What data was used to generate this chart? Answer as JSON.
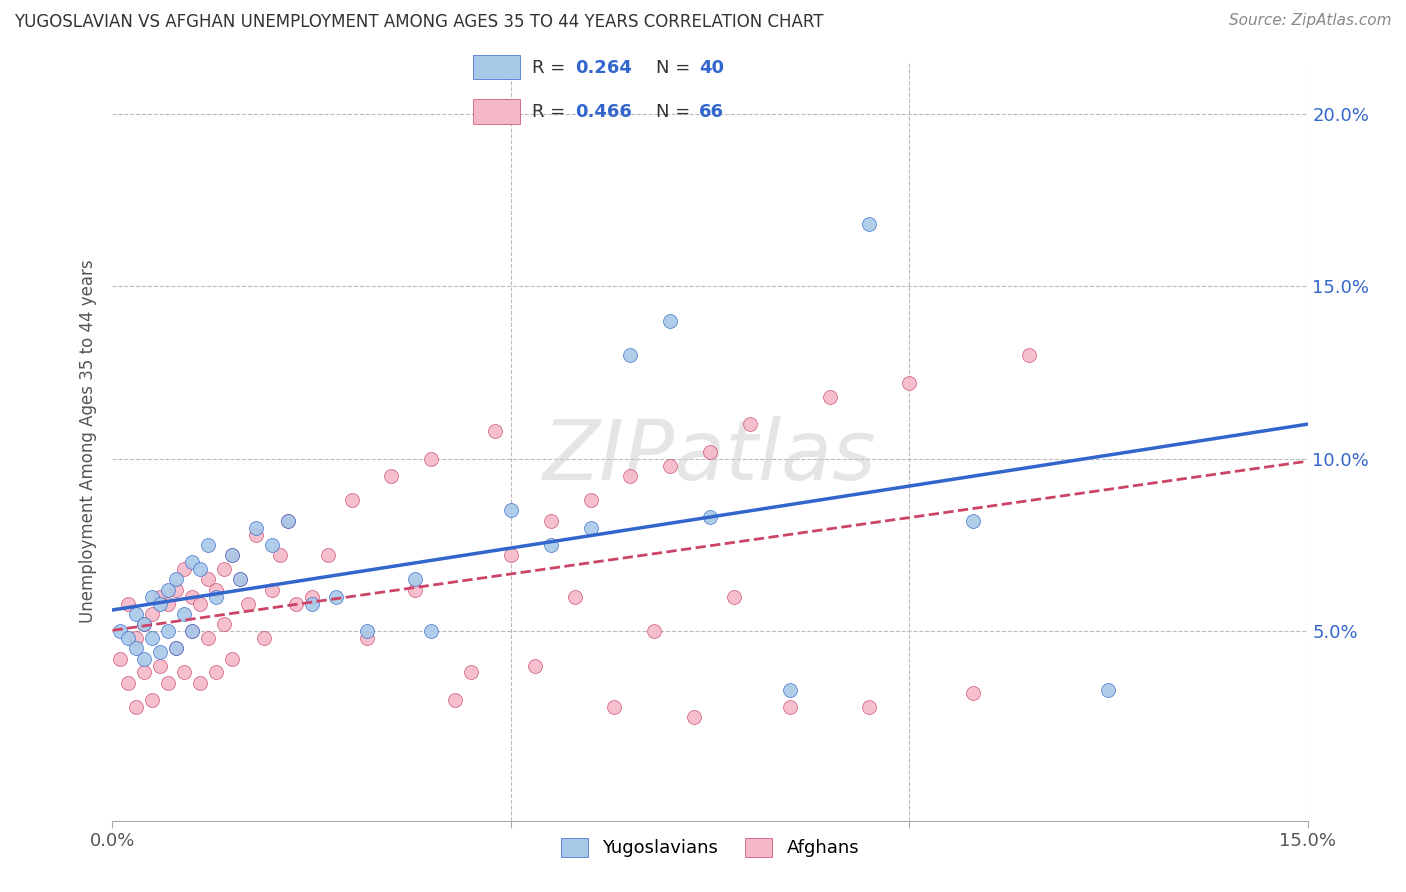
{
  "title": "YUGOSLAVIAN VS AFGHAN UNEMPLOYMENT AMONG AGES 35 TO 44 YEARS CORRELATION CHART",
  "source": "Source: ZipAtlas.com",
  "ylabel": "Unemployment Among Ages 35 to 44 years",
  "xlim": [
    0.0,
    0.15
  ],
  "ylim": [
    -0.005,
    0.215
  ],
  "xticks": [
    0.0,
    0.05,
    0.1,
    0.15
  ],
  "xticklabels": [
    "0.0%",
    "",
    "",
    "15.0%"
  ],
  "ytick_right": [
    0.05,
    0.1,
    0.15,
    0.2
  ],
  "yticklabels_right": [
    "5.0%",
    "10.0%",
    "15.0%",
    "20.0%"
  ],
  "blue_color": "#a8c8e8",
  "pink_color": "#f4b8c8",
  "blue_line_color": "#3366cc",
  "pink_line_color": "#cc4466",
  "background_color": "#ffffff",
  "grid_color": "#bbbbbb",
  "watermark": "ZIPatlas",
  "legend_r_blue": "R = 0.264",
  "legend_n_blue": "N = 40",
  "legend_r_pink": "R = 0.466",
  "legend_n_pink": "N = 66",
  "yug_x": [
    0.001,
    0.002,
    0.003,
    0.003,
    0.004,
    0.004,
    0.005,
    0.005,
    0.006,
    0.006,
    0.007,
    0.007,
    0.008,
    0.008,
    0.009,
    0.01,
    0.01,
    0.011,
    0.012,
    0.013,
    0.015,
    0.016,
    0.018,
    0.02,
    0.022,
    0.025,
    0.028,
    0.032,
    0.038,
    0.04,
    0.05,
    0.055,
    0.06,
    0.065,
    0.07,
    0.075,
    0.085,
    0.095,
    0.108,
    0.125
  ],
  "yug_y": [
    0.05,
    0.048,
    0.055,
    0.045,
    0.052,
    0.042,
    0.06,
    0.048,
    0.058,
    0.044,
    0.062,
    0.05,
    0.065,
    0.045,
    0.055,
    0.07,
    0.05,
    0.068,
    0.075,
    0.06,
    0.072,
    0.065,
    0.08,
    0.075,
    0.082,
    0.058,
    0.06,
    0.05,
    0.065,
    0.05,
    0.085,
    0.075,
    0.08,
    0.13,
    0.14,
    0.083,
    0.033,
    0.168,
    0.082,
    0.033
  ],
  "afg_x": [
    0.001,
    0.002,
    0.002,
    0.003,
    0.003,
    0.004,
    0.004,
    0.005,
    0.005,
    0.006,
    0.006,
    0.007,
    0.007,
    0.008,
    0.008,
    0.009,
    0.009,
    0.01,
    0.01,
    0.011,
    0.011,
    0.012,
    0.012,
    0.013,
    0.013,
    0.014,
    0.014,
    0.015,
    0.015,
    0.016,
    0.017,
    0.018,
    0.019,
    0.02,
    0.021,
    0.022,
    0.023,
    0.025,
    0.027,
    0.03,
    0.032,
    0.035,
    0.038,
    0.04,
    0.043,
    0.045,
    0.048,
    0.05,
    0.053,
    0.055,
    0.058,
    0.06,
    0.063,
    0.065,
    0.068,
    0.07,
    0.073,
    0.075,
    0.078,
    0.08,
    0.085,
    0.09,
    0.095,
    0.1,
    0.108,
    0.115
  ],
  "afg_y": [
    0.042,
    0.058,
    0.035,
    0.048,
    0.028,
    0.052,
    0.038,
    0.055,
    0.03,
    0.06,
    0.04,
    0.058,
    0.035,
    0.062,
    0.045,
    0.068,
    0.038,
    0.05,
    0.06,
    0.058,
    0.035,
    0.065,
    0.048,
    0.062,
    0.038,
    0.068,
    0.052,
    0.072,
    0.042,
    0.065,
    0.058,
    0.078,
    0.048,
    0.062,
    0.072,
    0.082,
    0.058,
    0.06,
    0.072,
    0.088,
    0.048,
    0.095,
    0.062,
    0.1,
    0.03,
    0.038,
    0.108,
    0.072,
    0.04,
    0.082,
    0.06,
    0.088,
    0.028,
    0.095,
    0.05,
    0.098,
    0.025,
    0.102,
    0.06,
    0.11,
    0.028,
    0.118,
    0.028,
    0.122,
    0.032,
    0.13
  ]
}
